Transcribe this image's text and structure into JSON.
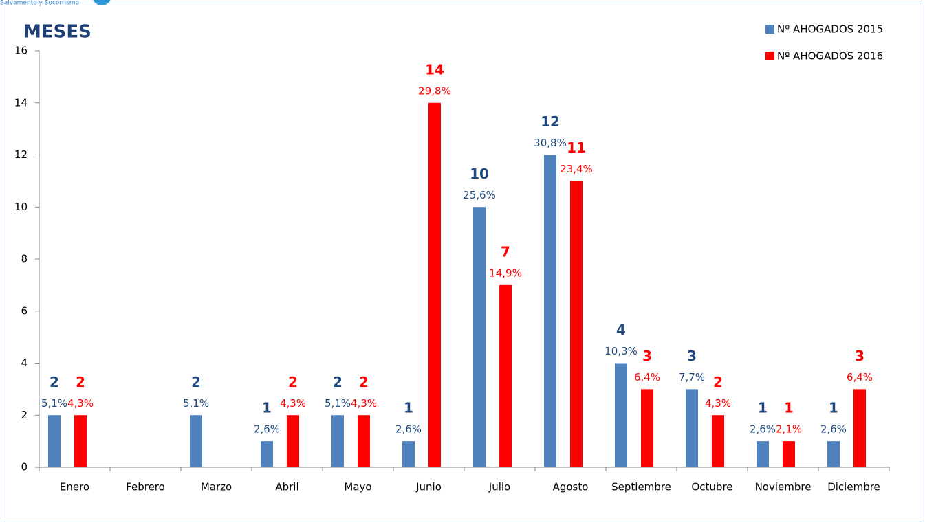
{
  "header_text": "Salvamento y Socorrismo",
  "chart_data": {
    "type": "bar",
    "title": "MESES",
    "categories": [
      "Enero",
      "Febrero",
      "Marzo",
      "Abril",
      "Mayo",
      "Junio",
      "Julio",
      "Agosto",
      "Septiembre",
      "Octubre",
      "Noviembre",
      "Diciembre"
    ],
    "series": [
      {
        "name": "Nº AHOGADOS 2015",
        "color": "#4f81bd",
        "label_color": "#1f497d",
        "values": [
          2,
          null,
          2,
          1,
          2,
          1,
          10,
          12,
          4,
          3,
          1,
          1
        ],
        "shares": [
          5.1,
          null,
          5.1,
          2.6,
          5.1,
          2.6,
          25.6,
          30.8,
          10.3,
          7.7,
          2.6,
          2.6
        ],
        "share_labels": [
          "5,1%",
          null,
          "5,1%",
          "2,6%",
          "5,1%",
          "2,6%",
          "25,6%",
          "30,8%",
          "10,3%",
          "7,7%",
          "2,6%",
          "2,6%"
        ]
      },
      {
        "name": "Nº AHOGADOS 2016",
        "color": "#ff0000",
        "label_color": "#ff0000",
        "values": [
          2,
          null,
          null,
          2,
          2,
          14,
          7,
          11,
          3,
          2,
          1,
          3
        ],
        "shares": [
          4.3,
          null,
          null,
          4.3,
          4.3,
          29.8,
          14.9,
          23.4,
          6.4,
          4.3,
          2.1,
          6.4
        ],
        "share_labels": [
          "4,3%",
          null,
          null,
          "4,3%",
          "4,3%",
          "29,8%",
          "14,9%",
          "23,4%",
          "6,4%",
          "4,3%",
          "2,1%",
          "6,4%"
        ]
      }
    ],
    "ylim": [
      0,
      16
    ],
    "yticks": [
      0,
      2,
      4,
      6,
      8,
      10,
      12,
      14,
      16
    ],
    "grid": false,
    "legend": "top-right"
  }
}
